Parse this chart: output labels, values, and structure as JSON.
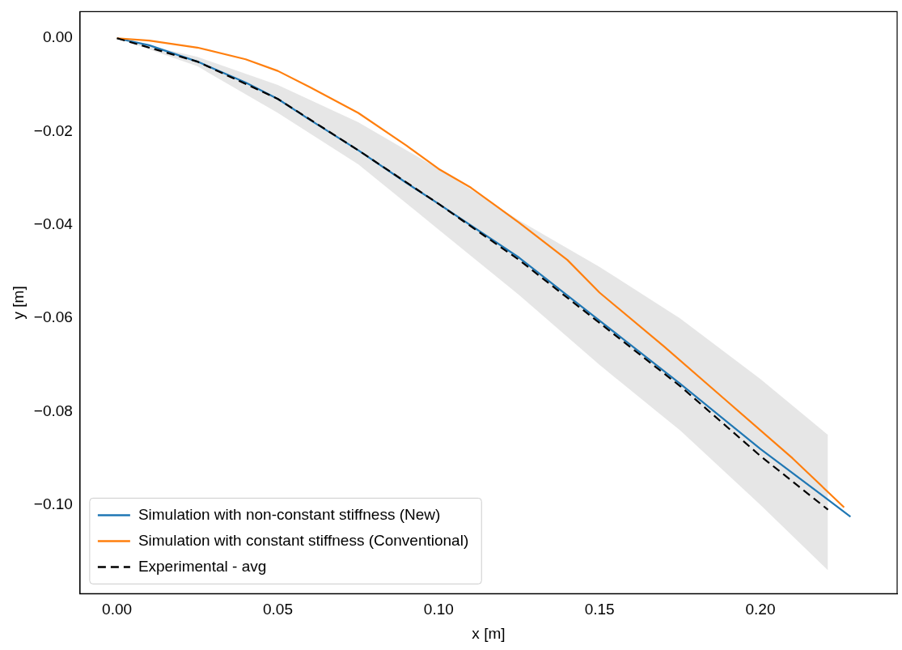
{
  "chart_data": {
    "type": "line",
    "xlabel": "x [m]",
    "ylabel": "y [m]",
    "xlim": [
      -0.0115,
      0.2425
    ],
    "ylim": [
      -0.119,
      0.0057
    ],
    "xticks": [
      {
        "value": 0,
        "label": "0.00"
      },
      {
        "value": 0.05,
        "label": "0.05"
      },
      {
        "value": 0.1,
        "label": "0.10"
      },
      {
        "value": 0.15,
        "label": "0.15"
      },
      {
        "value": 0.2,
        "label": "0.20"
      }
    ],
    "yticks": [
      {
        "value": 0,
        "label": "0.00"
      },
      {
        "value": -0.02,
        "label": "−0.02"
      },
      {
        "value": -0.04,
        "label": "−0.04"
      },
      {
        "value": -0.06,
        "label": "−0.06"
      },
      {
        "value": -0.08,
        "label": "−0.08"
      },
      {
        "value": -0.1,
        "label": "−0.10"
      }
    ],
    "grid": false,
    "legend": "bottom left",
    "marker": "none",
    "series": [
      {
        "name": "Simulation with non-constant stiffness (New)",
        "color": "#1f77b4",
        "line_style": "solid",
        "x": [
          0,
          0.01,
          0.025,
          0.04,
          0.05,
          0.06,
          0.075,
          0.09,
          0.1,
          0.125,
          0.15,
          0.175,
          0.2,
          0.228
        ],
        "values": [
          0,
          -0.0015,
          -0.005,
          -0.0095,
          -0.013,
          -0.0175,
          -0.024,
          -0.031,
          -0.0355,
          -0.047,
          -0.0605,
          -0.074,
          -0.088,
          -0.1025
        ]
      },
      {
        "name": "Simulation with constant stiffness (Conventional)",
        "color": "#ff7f0e",
        "line_style": "solid",
        "x": [
          0,
          0.01,
          0.025,
          0.04,
          0.05,
          0.06,
          0.075,
          0.09,
          0.1,
          0.11,
          0.125,
          0.14,
          0.15,
          0.17,
          0.19,
          0.21,
          0.226
        ],
        "values": [
          0,
          -0.0005,
          -0.002,
          -0.0045,
          -0.007,
          -0.0105,
          -0.016,
          -0.023,
          -0.028,
          -0.032,
          -0.0395,
          -0.0475,
          -0.0545,
          -0.066,
          -0.078,
          -0.09,
          -0.1005
        ]
      },
      {
        "name": "Experimental - avg",
        "color": "#000000",
        "line_style": "dashed",
        "x": [
          0,
          0.025,
          0.05,
          0.075,
          0.1,
          0.125,
          0.15,
          0.175,
          0.2,
          0.221
        ],
        "values": [
          0,
          -0.005,
          -0.013,
          -0.024,
          -0.0355,
          -0.0475,
          -0.061,
          -0.0745,
          -0.0895,
          -0.101
        ],
        "upper": [
          0,
          -0.004,
          -0.01,
          -0.018,
          -0.028,
          -0.039,
          -0.049,
          -0.06,
          -0.073,
          -0.085
        ],
        "lower": [
          0,
          -0.006,
          -0.016,
          -0.027,
          -0.041,
          -0.055,
          -0.07,
          -0.084,
          -0.1,
          -0.114
        ]
      }
    ]
  }
}
